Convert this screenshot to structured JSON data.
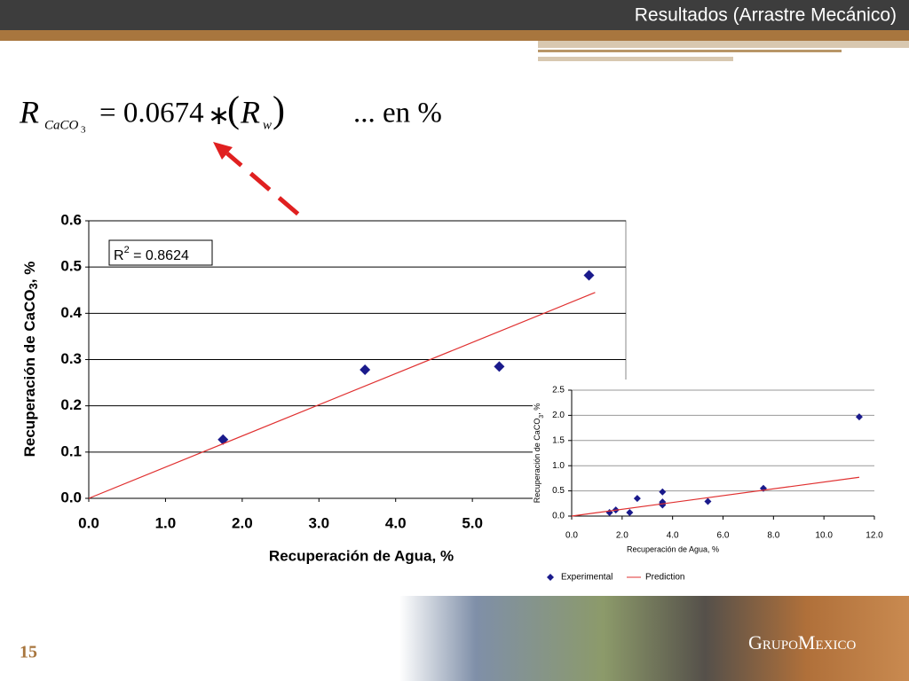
{
  "header": {
    "title": "Resultados (Arrastre Mecánico)"
  },
  "equation": {
    "lhs": "R",
    "lhs_sub": "CaCO",
    "lhs_sub2": "3",
    "rhs": "= 0.0674",
    "op": "∗",
    "open": "(",
    "var": "R",
    "var_sub": "w",
    "close": ")",
    "units": "... en %"
  },
  "chart_data": [
    {
      "type": "scatter",
      "x_label": "Recuperación de Agua, %",
      "y_label": {
        "text": "Recuperación de CaCO",
        "sub": "3",
        "rest": ", %"
      },
      "annotation": {
        "base": "R",
        "sup": "2",
        "rest": " = 0.8624"
      },
      "xlim": [
        0,
        7
      ],
      "ylim": [
        0,
        0.6
      ],
      "xticks": [
        {
          "value": 0,
          "label": "0.0"
        },
        {
          "value": 1,
          "label": "1.0"
        },
        {
          "value": 2,
          "label": "2.0"
        },
        {
          "value": 3,
          "label": "3.0"
        },
        {
          "value": 4,
          "label": "4.0"
        },
        {
          "value": 5,
          "label": "5.0"
        }
      ],
      "yticks": [
        {
          "value": 0,
          "label": "0.0"
        },
        0.1,
        0.2,
        0.3,
        0.4,
        0.5,
        0.6
      ],
      "grid": true,
      "series": [
        {
          "marker": "diamond",
          "color": "#1a1a8c",
          "x": [
            1.75,
            3.6,
            5.35,
            6.52
          ],
          "values": [
            0.127,
            0.278,
            0.285,
            0.482
          ]
        },
        {
          "marker": "line",
          "color": "#e03030",
          "x": [
            0,
            6.6
          ],
          "values": [
            0,
            0.445
          ]
        }
      ]
    },
    {
      "type": "scatter",
      "x_label": "Recuperación de Agua, %",
      "y_label": {
        "text": "Recuperación de CaCO",
        "sub": "3",
        "rest": ", %"
      },
      "xlim": [
        0,
        12
      ],
      "ylim": [
        0,
        2.5
      ],
      "xticks": [
        {
          "value": 0,
          "label": "0.0"
        },
        {
          "value": 2,
          "label": "2.0"
        },
        {
          "value": 4,
          "label": "4.0"
        },
        {
          "value": 6,
          "label": "6.0"
        },
        {
          "value": 8,
          "label": "8.0"
        },
        {
          "value": 10,
          "label": "10.0"
        },
        {
          "value": 12,
          "label": "12.0"
        }
      ],
      "yticks": [
        {
          "value": 0,
          "label": "0.0"
        },
        0.5,
        {
          "value": 1,
          "label": "1.0"
        },
        1.5,
        {
          "value": 2,
          "label": "2.0"
        },
        2.5
      ],
      "grid": true,
      "series": [
        {
          "name": "Experimental",
          "marker": "diamond",
          "color": "#1a1a8c",
          "x": [
            1.5,
            1.75,
            2.3,
            2.6,
            3.6,
            3.6,
            3.6,
            3.6,
            5.4,
            7.6,
            11.4
          ],
          "values": [
            0.07,
            0.12,
            0.07,
            0.35,
            0.48,
            0.28,
            0.25,
            0.22,
            0.29,
            0.55,
            1.97
          ]
        },
        {
          "name": "Prediction",
          "marker": "line",
          "color": "#e03030",
          "x": [
            0,
            11.4
          ],
          "values": [
            0,
            0.77
          ]
        }
      ]
    }
  ],
  "footer": {
    "page_number": "15",
    "logo": "GrupoMexico"
  }
}
